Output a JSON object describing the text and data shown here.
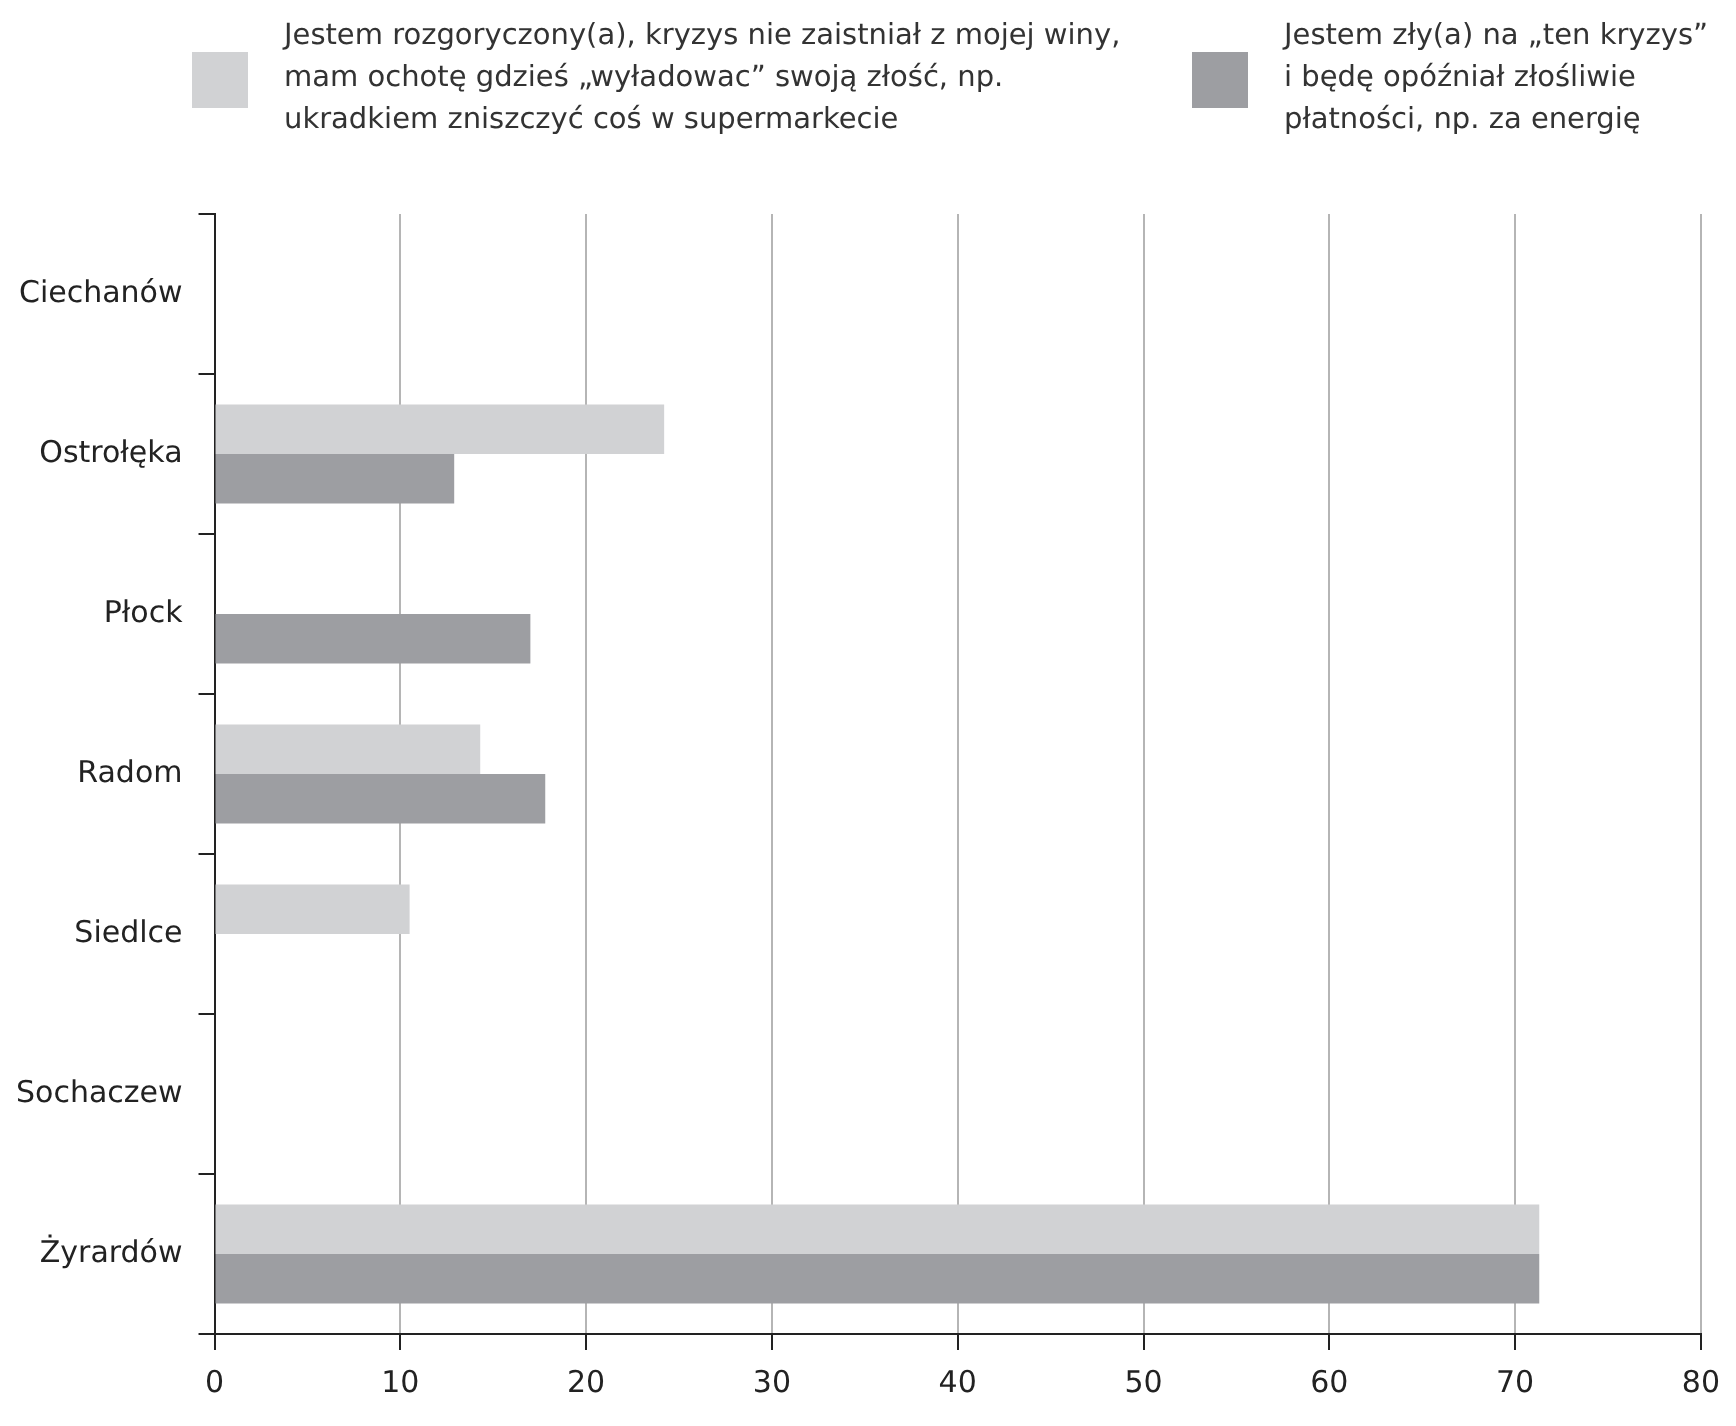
{
  "chart_data": {
    "type": "bar",
    "orientation": "horizontal",
    "categories": [
      "Ciechanów",
      "Ostrołęka",
      "Płock",
      "Radom",
      "Siedlce",
      "Sochaczew",
      "Żyrardów"
    ],
    "series": [
      {
        "name": "Jestem rozgoryczony(a), kryzys nie zaistniał z mojej winy, mam ochotę gdzieś „wyładowac” swoją złość, np. ukradkiem zniszczyć coś w supermarkecie",
        "color": "#d1d2d4",
        "values": [
          null,
          24.2,
          null,
          14.3,
          10.5,
          null,
          71.3
        ]
      },
      {
        "name": "Jestem zły(a) na „ten kryzys” i będę opóźniał złośliwie płatności, np. za energię",
        "color": "#9d9ea2",
        "values": [
          null,
          12.9,
          17.0,
          17.8,
          null,
          null,
          71.3
        ]
      }
    ],
    "xlim": [
      0,
      80
    ],
    "xticks": [
      0,
      10,
      20,
      30,
      40,
      50,
      60,
      70,
      80
    ],
    "grid": "x",
    "legend": "top"
  }
}
